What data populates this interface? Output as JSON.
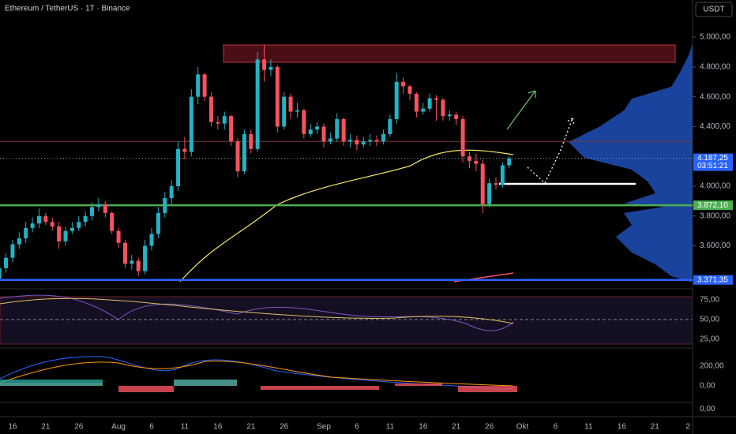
{
  "chart_data": {
    "type": "candlestick",
    "title": "Ethereum / TetherUS · 1T · Binance",
    "currency_button": "USDT",
    "open": [
      3380,
      3450,
      3520,
      3610,
      3650,
      3720,
      3750,
      3800,
      3760,
      3730,
      3630,
      3700,
      3720,
      3760,
      3800,
      3860,
      3880,
      3820,
      3700,
      3620,
      3480,
      3500,
      3430,
      3600,
      3680,
      3820,
      3920,
      4000,
      4250,
      4230,
      4600,
      4750,
      4600,
      4430,
      4420,
      4470,
      4300,
      4100,
      4350,
      4250,
      4850,
      4780,
      4800,
      4400,
      4600,
      4500,
      4510,
      4350,
      4380,
      4400,
      4300,
      4320,
      4450,
      4300,
      4310,
      4280,
      4300,
      4310,
      4300,
      4350,
      4450,
      4700,
      4670,
      4620,
      4500,
      4520,
      4590,
      4580,
      4470,
      4480,
      4450,
      4200,
      4170,
      4150,
      3880,
      4020,
      4010,
      4140
    ],
    "high": [
      3480,
      3550,
      3640,
      3690,
      3760,
      3790,
      3850,
      3820,
      3790,
      3760,
      3730,
      3760,
      3800,
      3830,
      3890,
      3920,
      3900,
      3830,
      3720,
      3640,
      3540,
      3520,
      3640,
      3720,
      3860,
      3960,
      4040,
      4300,
      4330,
      4650,
      4800,
      4760,
      4630,
      4470,
      4500,
      4480,
      4320,
      4380,
      4380,
      4900,
      4950,
      4850,
      4810,
      4630,
      4620,
      4560,
      4520,
      4420,
      4430,
      4420,
      4360,
      4490,
      4460,
      4350,
      4340,
      4330,
      4350,
      4340,
      4380,
      4480,
      4760,
      4730,
      4680,
      4630,
      4560,
      4620,
      4610,
      4590,
      4510,
      4500,
      4470,
      4230,
      4220,
      4180,
      4050,
      4060,
      4160,
      4200
    ],
    "low": [
      3360,
      3420,
      3490,
      3580,
      3620,
      3690,
      3720,
      3740,
      3700,
      3580,
      3600,
      3680,
      3700,
      3730,
      3770,
      3830,
      3790,
      3680,
      3590,
      3450,
      3440,
      3400,
      3410,
      3570,
      3650,
      3790,
      3880,
      3970,
      4180,
      4200,
      4550,
      4570,
      4400,
      4380,
      4380,
      4270,
      4060,
      4080,
      4220,
      4230,
      4700,
      4740,
      4360,
      4380,
      4450,
      4460,
      4320,
      4330,
      4350,
      4260,
      4280,
      4300,
      4270,
      4260,
      4240,
      4260,
      4270,
      4270,
      4280,
      4330,
      4420,
      4620,
      4580,
      4460,
      4480,
      4500,
      4440,
      4440,
      4440,
      4410,
      4160,
      4120,
      4100,
      3820,
      3860,
      3980,
      3990,
      4120
    ],
    "close": [
      3450,
      3520,
      3610,
      3650,
      3720,
      3750,
      3800,
      3760,
      3730,
      3630,
      3700,
      3720,
      3760,
      3800,
      3860,
      3880,
      3820,
      3700,
      3620,
      3480,
      3500,
      3430,
      3600,
      3680,
      3820,
      3920,
      4000,
      4250,
      4230,
      4600,
      4750,
      4600,
      4430,
      4420,
      4470,
      4300,
      4100,
      4350,
      4250,
      4850,
      4780,
      4800,
      4400,
      4600,
      4500,
      4510,
      4350,
      4380,
      4400,
      4300,
      4320,
      4450,
      4300,
      4310,
      4280,
      4300,
      4310,
      4300,
      4350,
      4450,
      4700,
      4670,
      4620,
      4500,
      4520,
      4590,
      4580,
      4470,
      4480,
      4450,
      4200,
      4170,
      4150,
      3880,
      4020,
      4010,
      4140,
      4187.25
    ],
    "up_color": "#22b3c6",
    "down_color": "#f7525f",
    "xlim": [
      0.1,
      104.7
    ],
    "xticks": [
      {
        "value": 2,
        "label": "16"
      },
      {
        "value": 7,
        "label": "21"
      },
      {
        "value": 12,
        "label": "26"
      },
      {
        "value": 18,
        "label": "Aug"
      },
      {
        "value": 23,
        "label": "6"
      },
      {
        "value": 28,
        "label": "11"
      },
      {
        "value": 33,
        "label": "16"
      },
      {
        "value": 38,
        "label": "21"
      },
      {
        "value": 43,
        "label": "26"
      },
      {
        "value": 49,
        "label": "Sep"
      },
      {
        "value": 54,
        "label": "6"
      },
      {
        "value": 59,
        "label": "11"
      },
      {
        "value": 64,
        "label": "16"
      },
      {
        "value": 69,
        "label": "21"
      },
      {
        "value": 74,
        "label": "26"
      },
      {
        "value": 79,
        "label": "Okt"
      },
      {
        "value": 84,
        "label": "6"
      },
      {
        "value": 89,
        "label": "11"
      },
      {
        "value": 94,
        "label": "16"
      },
      {
        "value": 99,
        "label": "21"
      },
      {
        "value": 104,
        "label": "2"
      }
    ],
    "ylim": [
      3317,
      5249
    ],
    "yticks": [
      {
        "value": 5000,
        "label": "5.000,00"
      },
      {
        "value": 4800,
        "label": "4.800,00"
      },
      {
        "value": 4600,
        "label": "4.600,00"
      },
      {
        "value": 4400,
        "label": "4.400,00"
      },
      {
        "value": 4000,
        "label": "4.000,00"
      },
      {
        "value": 3800,
        "label": "3.800,00"
      },
      {
        "value": 3600,
        "label": "3.600,00"
      }
    ],
    "price_labels": [
      {
        "value": 4187.25,
        "label": "4.187,25",
        "sub": "03:51:21",
        "color": "#2962ff"
      },
      {
        "value": 3872.1,
        "label": "3.872,10",
        "color": "#4caf50"
      },
      {
        "value": 3371.35,
        "label": "3.371,35",
        "color": "#2962ff"
      }
    ],
    "levels": [
      {
        "value": 3872.1,
        "color": "#4caf50"
      },
      {
        "value": 3371.35,
        "color": "#2962ff"
      },
      {
        "value": 4300,
        "color": "#7a3b3b"
      }
    ],
    "rsi": {
      "ylim": [
        15,
        85
      ],
      "yticks": [
        {
          "value": 75,
          "label": "75,00"
        },
        {
          "value": 50,
          "label": "50,00"
        },
        {
          "value": 25,
          "label": "25,00"
        }
      ]
    },
    "macd": {
      "ylim": [
        -168,
        352
      ],
      "yticks": [
        {
          "value": 200,
          "label": "200,00"
        },
        {
          "value": 0,
          "label": "0,00"
        }
      ]
    },
    "lower": {
      "yticks": [
        {
          "value": 0,
          "label": "0,00"
        }
      ]
    }
  }
}
